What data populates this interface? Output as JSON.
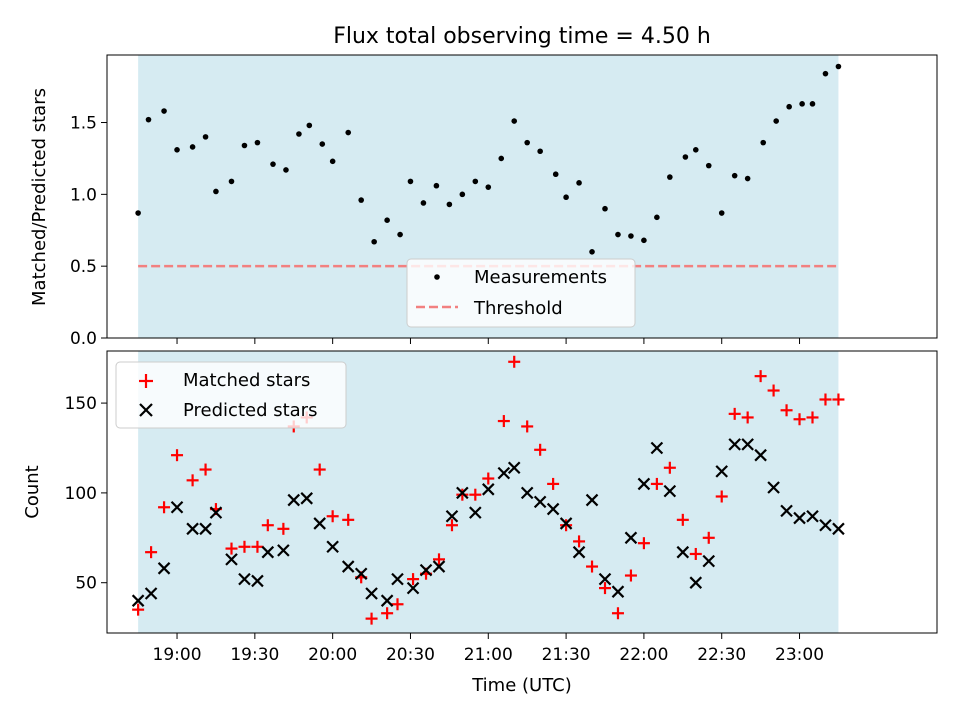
{
  "title": "Flux total observing time = 4.50 h",
  "chart_data": [
    {
      "type": "scatter",
      "title": "Flux total observing time = 4.50 h",
      "xlabel": "",
      "ylabel": "Matched/Predicted stars",
      "xlim": [
        "18:33",
        "23:53"
      ],
      "ylim": [
        0,
        1.97
      ],
      "yticks": [
        "0.0",
        "0.5",
        "1.0",
        "1.5"
      ],
      "grid": false,
      "legend_position": "bottom-center",
      "shaded_span": [
        "18:45",
        "23:15"
      ],
      "series": [
        {
          "name": "Measurements",
          "marker": "dot",
          "color": "#000000",
          "x": [
            "18:45",
            "18:49",
            "18:55",
            "19:00",
            "19:06",
            "19:11",
            "19:15",
            "19:21",
            "19:26",
            "19:31",
            "19:37",
            "19:42",
            "19:47",
            "19:51",
            "19:56",
            "20:00",
            "20:06",
            "20:11",
            "20:16",
            "20:21",
            "20:26",
            "20:30",
            "20:35",
            "20:40",
            "20:45",
            "20:50",
            "20:55",
            "21:00",
            "21:05",
            "21:10",
            "21:15",
            "21:20",
            "21:26",
            "21:30",
            "21:35",
            "21:40",
            "21:45",
            "21:50",
            "21:55",
            "22:00",
            "22:05",
            "22:10",
            "22:16",
            "22:20",
            "22:25",
            "22:30",
            "22:35",
            "22:40",
            "22:46",
            "22:51",
            "22:56",
            "23:01",
            "23:05",
            "23:10",
            "23:15"
          ],
          "y": [
            0.87,
            1.52,
            1.58,
            1.31,
            1.33,
            1.4,
            1.02,
            1.09,
            1.34,
            1.36,
            1.21,
            1.17,
            1.42,
            1.48,
            1.35,
            1.23,
            1.43,
            0.96,
            0.67,
            0.82,
            0.72,
            1.09,
            0.94,
            1.06,
            0.93,
            1.0,
            1.09,
            1.05,
            1.25,
            1.51,
            1.36,
            1.3,
            1.14,
            0.98,
            1.08,
            0.6,
            0.9,
            0.72,
            0.71,
            0.68,
            0.84,
            1.12,
            1.26,
            1.31,
            1.2,
            0.87,
            1.13,
            1.11,
            1.36,
            1.51,
            1.61,
            1.63,
            1.63,
            1.84,
            1.89
          ]
        },
        {
          "name": "Threshold",
          "style": "dashed",
          "color": "#f28080",
          "x": [
            "18:45",
            "23:15"
          ],
          "y": [
            0.5,
            0.5
          ]
        }
      ]
    },
    {
      "type": "scatter",
      "title": "",
      "xlabel": "Time (UTC)",
      "ylabel": "Count",
      "xlim": [
        "18:33",
        "23:53"
      ],
      "ylim": [
        22,
        179
      ],
      "yticks": [
        "50",
        "100",
        "150"
      ],
      "xticks": [
        "19:00",
        "19:30",
        "20:00",
        "20:30",
        "21:00",
        "21:30",
        "22:00",
        "22:30",
        "23:00"
      ],
      "grid": false,
      "legend_position": "top-left",
      "shaded_span": [
        "18:45",
        "23:15"
      ],
      "series": [
        {
          "name": "Matched stars",
          "marker": "plus",
          "color": "#ff0000",
          "x": [
            "18:45",
            "18:50",
            "18:55",
            "19:00",
            "19:06",
            "19:11",
            "19:15",
            "19:21",
            "19:26",
            "19:31",
            "19:35",
            "19:41",
            "19:45",
            "19:50",
            "19:55",
            "20:00",
            "20:06",
            "20:11",
            "20:15",
            "20:21",
            "20:25",
            "20:31",
            "20:36",
            "20:41",
            "20:46",
            "20:50",
            "20:55",
            "21:00",
            "21:06",
            "21:10",
            "21:15",
            "21:20",
            "21:25",
            "21:30",
            "21:35",
            "21:40",
            "21:45",
            "21:50",
            "21:55",
            "22:00",
            "22:05",
            "22:10",
            "22:15",
            "22:20",
            "22:25",
            "22:30",
            "22:35",
            "22:40",
            "22:45",
            "22:50",
            "22:55",
            "23:00",
            "23:05",
            "23:10",
            "23:15"
          ],
          "y": [
            35,
            67,
            92,
            121,
            107,
            113,
            91,
            69,
            70,
            70,
            82,
            80,
            137,
            142,
            113,
            87,
            85,
            53,
            30,
            33,
            38,
            52,
            55,
            63,
            82,
            99,
            99,
            108,
            140,
            173,
            137,
            124,
            105,
            82,
            73,
            59,
            47,
            33,
            54,
            72,
            105,
            114,
            85,
            66,
            75,
            98,
            144,
            142,
            165,
            157,
            146,
            141,
            142,
            152,
            152
          ]
        },
        {
          "name": "Predicted stars",
          "marker": "x",
          "color": "#000000",
          "x": [
            "18:45",
            "18:50",
            "18:55",
            "19:00",
            "19:06",
            "19:11",
            "19:15",
            "19:21",
            "19:26",
            "19:31",
            "19:35",
            "19:41",
            "19:45",
            "19:50",
            "19:55",
            "20:00",
            "20:06",
            "20:11",
            "20:15",
            "20:21",
            "20:25",
            "20:31",
            "20:36",
            "20:41",
            "20:46",
            "20:50",
            "20:55",
            "21:00",
            "21:06",
            "21:10",
            "21:15",
            "21:20",
            "21:25",
            "21:30",
            "21:35",
            "21:40",
            "21:45",
            "21:50",
            "21:55",
            "22:00",
            "22:05",
            "22:10",
            "22:15",
            "22:20",
            "22:25",
            "22:30",
            "22:35",
            "22:40",
            "22:45",
            "22:50",
            "22:55",
            "23:00",
            "23:05",
            "23:10",
            "23:15"
          ],
          "y": [
            40,
            44,
            58,
            92,
            80,
            80,
            89,
            63,
            52,
            51,
            67,
            68,
            96,
            97,
            83,
            70,
            59,
            55,
            44,
            40,
            52,
            47,
            57,
            59,
            87,
            100,
            89,
            102,
            111,
            114,
            100,
            95,
            91,
            83,
            67,
            96,
            52,
            45,
            75,
            105,
            125,
            101,
            67,
            50,
            62,
            112,
            127,
            127,
            121,
            103,
            90,
            86,
            87,
            82,
            80
          ]
        }
      ]
    }
  ]
}
